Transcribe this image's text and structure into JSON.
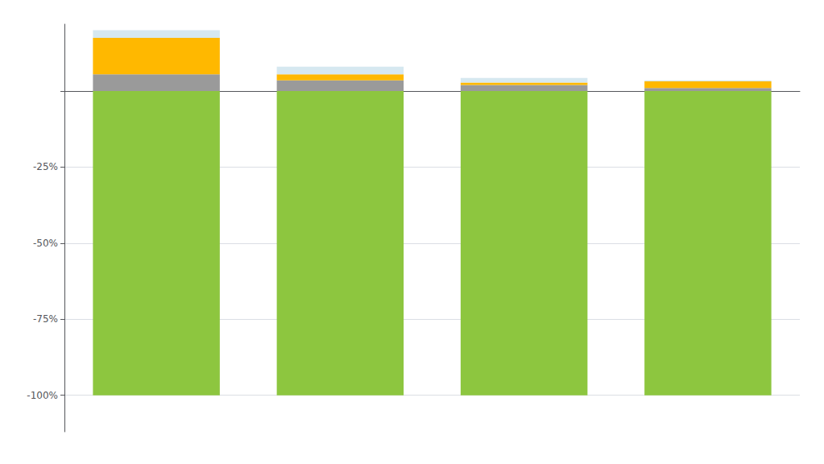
{
  "chart_data": {
    "type": "bar",
    "stacked": true,
    "categories": [
      null,
      null,
      null,
      null
    ],
    "series": [
      {
        "color": "#8dc63f",
        "values": [
          -100,
          -100,
          -100,
          -100
        ]
      },
      {
        "color": "#9a9a9a",
        "values": [
          5.5,
          3.5,
          2.0,
          1.0
        ]
      },
      {
        "color": "#ffb800",
        "values": [
          12.0,
          2.0,
          0.8,
          2.2
        ]
      },
      {
        "color": "#d6e8f0",
        "values": [
          2.5,
          2.5,
          1.5,
          0.3
        ]
      }
    ],
    "ylim": [
      -112,
      22
    ],
    "yticks": [
      {
        "value": 0,
        "label": ""
      },
      {
        "value": -25,
        "label": "-25%"
      },
      {
        "value": -50,
        "label": "-50%"
      },
      {
        "value": -75,
        "label": "-75%"
      },
      {
        "value": -100,
        "label": "-100%"
      }
    ],
    "grid": true,
    "tick_labels": "y"
  }
}
